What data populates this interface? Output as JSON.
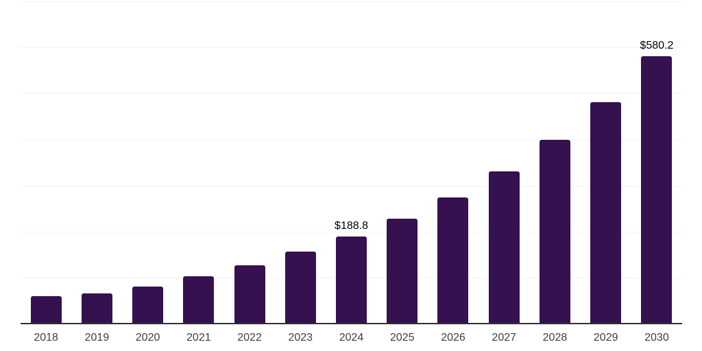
{
  "chart_data": {
    "type": "bar",
    "title": "",
    "xlabel": "",
    "ylabel": "",
    "categories": [
      "2018",
      "2019",
      "2020",
      "2021",
      "2022",
      "2023",
      "2024",
      "2025",
      "2026",
      "2027",
      "2028",
      "2029",
      "2030"
    ],
    "values": [
      60.2,
      65.7,
      80.6,
      103.3,
      127.1,
      155.8,
      188.8,
      227.6,
      274.4,
      330.9,
      398.9,
      481.0,
      580.2
    ],
    "data_labels": [
      "",
      "",
      "",
      "",
      "",
      "",
      "$188.8",
      "",
      "",
      "",
      "",
      "",
      "$580.2"
    ],
    "ylim": [
      0,
      700
    ],
    "grid": {
      "horizontal": true,
      "step": 100,
      "color": "#f2f2f2"
    },
    "legend": "none",
    "colors": {
      "bar": "#351150",
      "axis_line": "#2f2f2f",
      "tick_label": "#3d3d3d",
      "data_label": "#000000",
      "background": "#ffffff"
    }
  }
}
